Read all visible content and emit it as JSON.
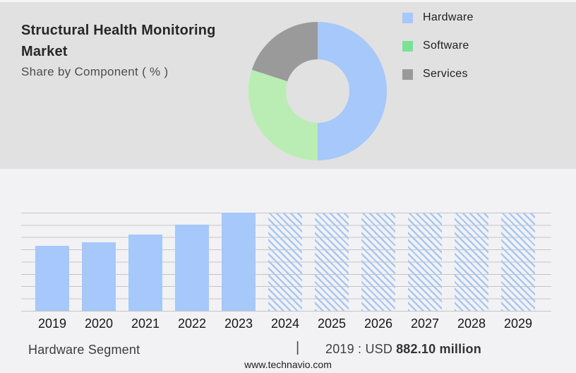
{
  "header": {
    "title": "Structural Health Monitoring Market",
    "subtitle": "Share by Component ( % )"
  },
  "legend": {
    "items": [
      {
        "label": "Hardware",
        "color": "#a6c8fb"
      },
      {
        "label": "Software",
        "color": "#79e295"
      },
      {
        "label": "Services",
        "color": "#9a9a9a"
      }
    ]
  },
  "chart_data": [
    {
      "type": "pie",
      "subtype": "donut",
      "title": "Share by Component ( % )",
      "labels": [
        "Hardware",
        "Software",
        "Services"
      ],
      "values_pct": [
        50,
        30,
        20
      ],
      "colors": [
        "#a6c8fb",
        "#b9edb4",
        "#9a9a9a"
      ],
      "legend_position": "right"
    },
    {
      "type": "bar",
      "categories": [
        "2019",
        "2020",
        "2021",
        "2022",
        "2023",
        "2024",
        "2025",
        "2026",
        "2027",
        "2028",
        "2029"
      ],
      "values_pct_of_max": [
        66,
        70,
        78,
        88,
        100,
        100,
        100,
        100,
        100,
        100,
        100
      ],
      "styles": [
        "solid",
        "solid",
        "solid",
        "solid",
        "solid",
        "hatched",
        "hatched",
        "hatched",
        "hatched",
        "hatched",
        "hatched"
      ],
      "bar_color": "#a6c8fb",
      "hatch_color": "#a9c7f3",
      "gridline_color": "#c5c5c5",
      "grid": true,
      "forecast_years": [
        "2024",
        "2025",
        "2026",
        "2027",
        "2028",
        "2029"
      ],
      "forecast_bar_style": "full-height hatched, no value labels",
      "annotations": [
        {
          "text": "2019 : USD 882.10 million"
        }
      ],
      "xlabel": "",
      "ylabel": ""
    }
  ],
  "footer": {
    "segment_label": "Hardware Segment",
    "separator": "|",
    "value_text": "2019 : USD",
    "value_strong": "882.10 million",
    "website": "www.technavio.com"
  },
  "colors": {
    "top_background": "#e1e1e1",
    "bottom_background": "#f2f2f4",
    "accent_blue": "#a6c8fb"
  }
}
